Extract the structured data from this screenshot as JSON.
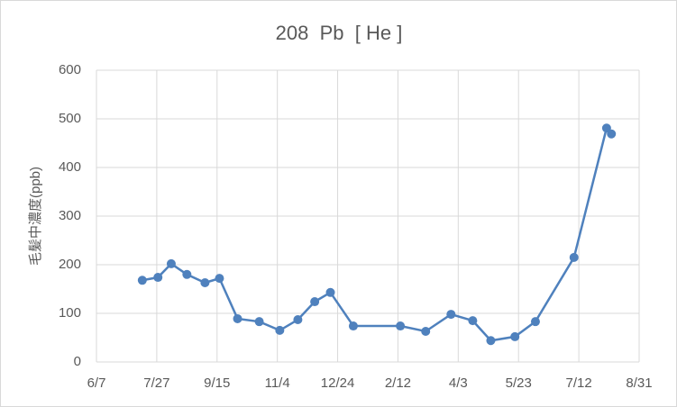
{
  "chart_data": {
    "type": "line",
    "title": "208  Pb  [ He ]",
    "ylabel": "毛髪中濃度(ppb)",
    "x": [
      38,
      51,
      62,
      75,
      90,
      102,
      117,
      135,
      152,
      167,
      181,
      194,
      213,
      252,
      273,
      294,
      312,
      327,
      347,
      364,
      396,
      423,
      427
    ],
    "series": [
      {
        "name": "208 Pb [He]",
        "color": "#4f81bd",
        "values": [
          168,
          174,
          202,
          180,
          163,
          172,
          89,
          83,
          65,
          87,
          124,
          143,
          74,
          74,
          63,
          98,
          85,
          44,
          52,
          83,
          215,
          481,
          469
        ]
      }
    ],
    "xlim": [
      0,
      450
    ],
    "xticks": [
      {
        "value": 0,
        "label": "6/7"
      },
      {
        "value": 50,
        "label": "7/27"
      },
      {
        "value": 100,
        "label": "9/15"
      },
      {
        "value": 150,
        "label": "11/4"
      },
      {
        "value": 200,
        "label": "12/24"
      },
      {
        "value": 250,
        "label": "2/12"
      },
      {
        "value": 300,
        "label": "4/3"
      },
      {
        "value": 350,
        "label": "5/23"
      },
      {
        "value": 400,
        "label": "7/12"
      },
      {
        "value": 450,
        "label": "8/31"
      }
    ],
    "ylim": [
      0,
      600
    ],
    "yticks": [
      0,
      100,
      200,
      300,
      400,
      500,
      600
    ],
    "grid": true
  }
}
